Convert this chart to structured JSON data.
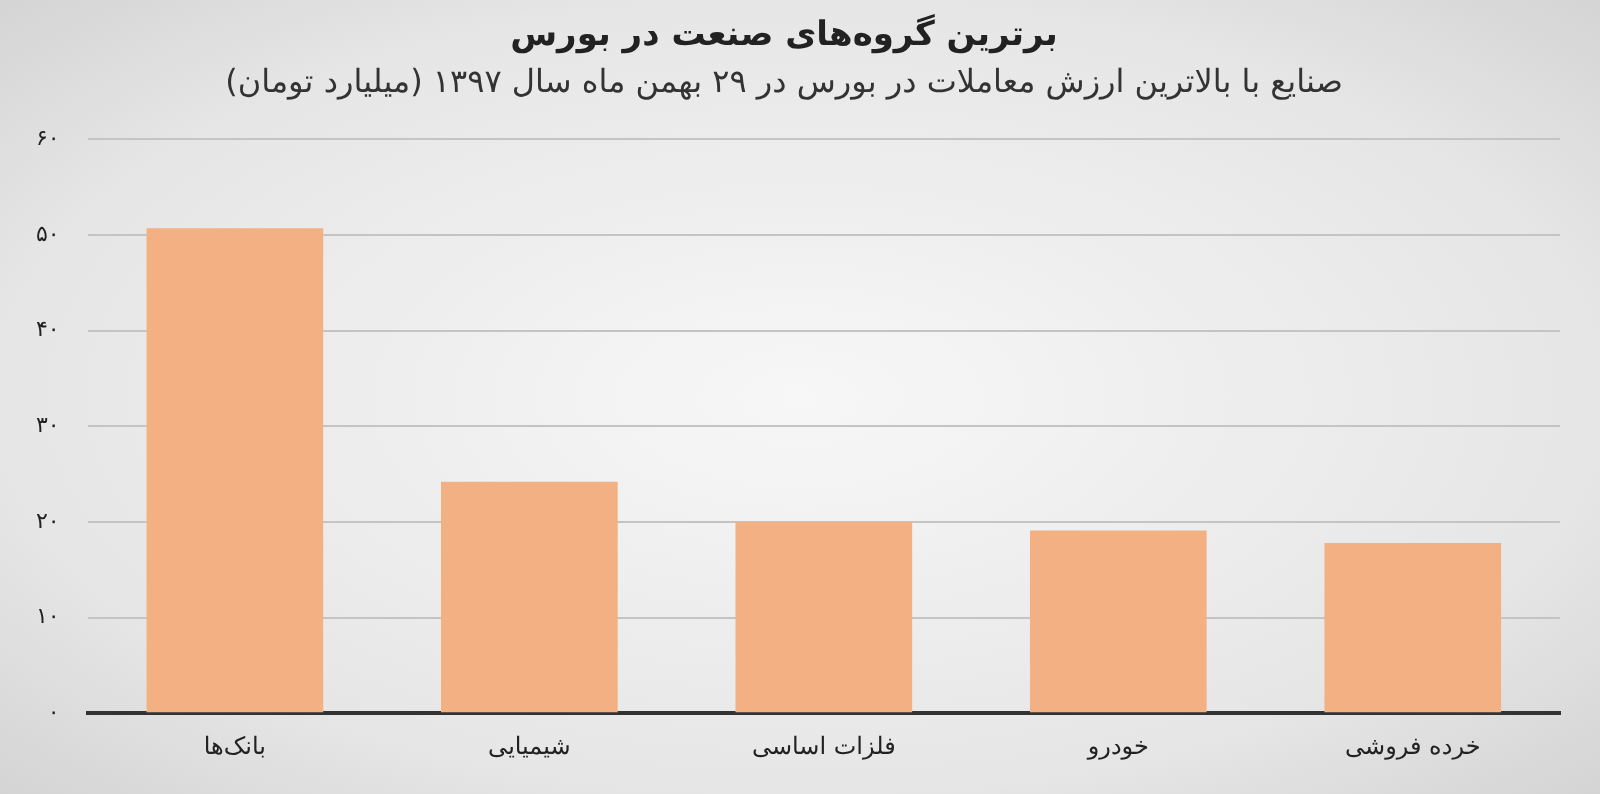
{
  "chart_data": {
    "type": "bar",
    "title": "برترین گروه‌های صنعت در بورس",
    "subtitle": "صنایع با بالاترین ارزش معاملات در بورس در ۲۹ بهمن ماه سال ۱۳۹۷ (میلیارد تومان)",
    "categories": [
      "بانک‌ها",
      "شیمیایی",
      "فلزات اساسی",
      "خودرو",
      "خرده فروشی"
    ],
    "values": [
      50.7,
      24.2,
      20.0,
      19.1,
      17.8
    ],
    "color": "#f3b183",
    "ylim": [
      0,
      60
    ],
    "yticks": [
      {
        "value": 0,
        "label": "۰"
      },
      {
        "value": 10,
        "label": "۱۰"
      },
      {
        "value": 20,
        "label": "۲۰"
      },
      {
        "value": 30,
        "label": "۳۰"
      },
      {
        "value": 40,
        "label": "۴۰"
      },
      {
        "value": 50,
        "label": "۵۰"
      },
      {
        "value": 60,
        "label": "۶۰"
      }
    ],
    "grid": "y",
    "legend": false
  }
}
